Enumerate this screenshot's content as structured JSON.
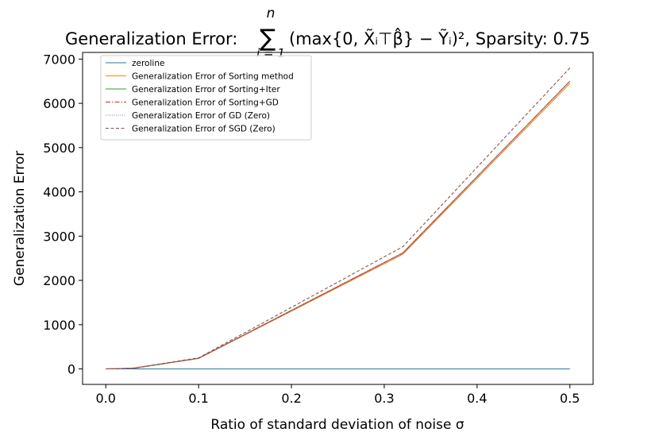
{
  "chart_data": {
    "type": "line",
    "title": {
      "prefix": "Generalization Error: ",
      "formula": "∑(max{0, X̃ᵢ⊤β̂} − Ỹᵢ)², Sparsity: 0.75",
      "sum_upper": "n",
      "sum_lower": "i = 1",
      "body": "(max{0, X̃ᵢ⊤β̂} − Ỹᵢ)², Sparsity: 0.75"
    },
    "xlabel": "Ratio of standard deviation of noise σ",
    "ylabel": "Generalization Error",
    "xlim": [
      -0.025,
      0.525
    ],
    "ylim": [
      -350,
      7150
    ],
    "xticks": [
      0.0,
      0.1,
      0.2,
      0.3,
      0.4,
      0.5
    ],
    "xtick_labels": [
      "0.0",
      "0.1",
      "0.2",
      "0.3",
      "0.4",
      "0.5"
    ],
    "yticks": [
      0,
      1000,
      2000,
      3000,
      4000,
      5000,
      6000,
      7000
    ],
    "ytick_labels": [
      "0",
      "1000",
      "2000",
      "3000",
      "4000",
      "5000",
      "6000",
      "7000"
    ],
    "grid": false,
    "legend_position": "top-left",
    "x": [
      0.0,
      0.03,
      0.1,
      0.32,
      0.5
    ],
    "series": [
      {
        "name": "zeroline",
        "color": "#1f77b4",
        "dash": "solid",
        "values": [
          0,
          0,
          0,
          0,
          0
        ]
      },
      {
        "name": "Generalization Error of Sorting method",
        "color": "#ff7f0e",
        "dash": "solid",
        "values": [
          0,
          15,
          235,
          2590,
          6450
        ]
      },
      {
        "name": "Generalization Error of Sorting+Iter",
        "color": "#2ca02c",
        "dash": "solid",
        "values": [
          0,
          15,
          240,
          2620,
          6500
        ]
      },
      {
        "name": "Generalization Error of Sorting+GD",
        "color": "#d62728",
        "dash": "dashdot",
        "values": [
          0,
          15,
          240,
          2620,
          6500
        ]
      },
      {
        "name": "Generalization Error of GD (Zero)",
        "color": "#9467bd",
        "dash": "dotted",
        "values": [
          0,
          15,
          240,
          2620,
          6500
        ]
      },
      {
        "name": "Generalization Error of SGD (Zero)",
        "color": "#8c564b",
        "dash": "dashed",
        "values": [
          0,
          20,
          250,
          2760,
          6800
        ]
      }
    ]
  }
}
